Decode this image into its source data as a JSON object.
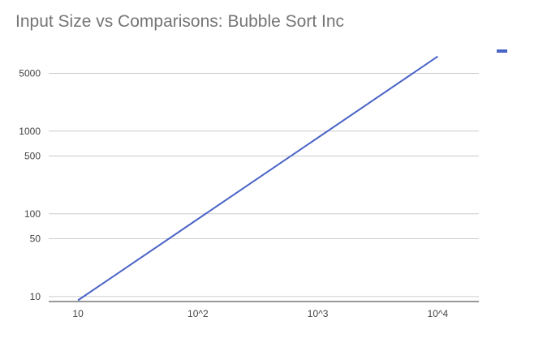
{
  "title": "Input Size vs Comparisons: Bubble Sort Inc",
  "chart_data": {
    "type": "line",
    "title": "Input Size vs Comparisons: Bubble Sort Inc",
    "xlabel": "",
    "ylabel": "",
    "x_scale": "log",
    "y_scale": "log",
    "x_ticks": [
      {
        "value": 10,
        "label": "10"
      },
      {
        "value": 100,
        "label": "10^2"
      },
      {
        "value": 1000,
        "label": "10^3"
      },
      {
        "value": 10000,
        "label": "10^4"
      }
    ],
    "y_ticks": [
      {
        "value": 10,
        "label": "10"
      },
      {
        "value": 50,
        "label": "50"
      },
      {
        "value": 100,
        "label": "100"
      },
      {
        "value": 500,
        "label": "500"
      },
      {
        "value": 1000,
        "label": "1000"
      },
      {
        "value": 5000,
        "label": "5000"
      }
    ],
    "xlim": [
      5.7,
      22000
    ],
    "ylim": [
      8.7,
      9500
    ],
    "grid": "horizontal",
    "legend": "right (marker only, no text)",
    "series": [
      {
        "color": "#4a63c7",
        "x": [
          10,
          10000
        ],
        "y": [
          9,
          8000
        ]
      }
    ]
  },
  "colors": {
    "series": "#4a63c7",
    "grid": "#cccccc",
    "axis": "#333333"
  }
}
